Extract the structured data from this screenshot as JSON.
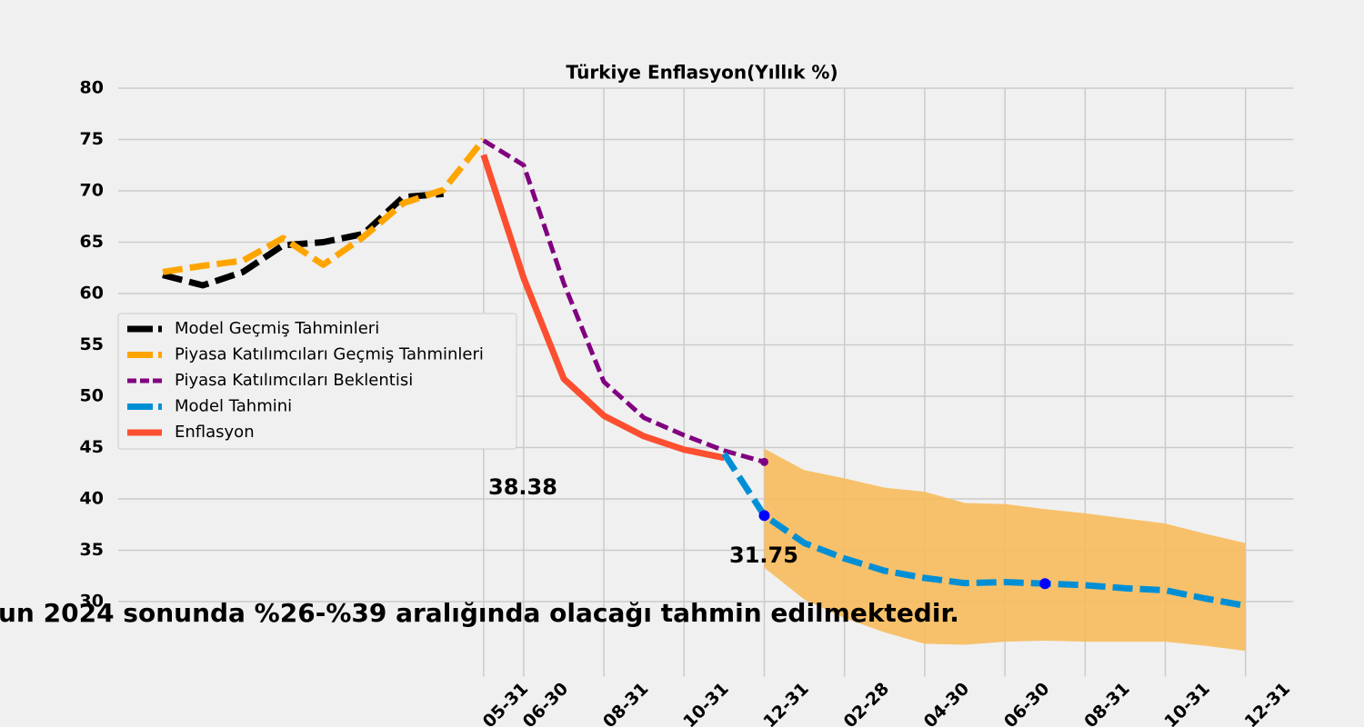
{
  "chart_data": {
    "type": "line",
    "title": "Türkiye Enflasyon(Yıllık %)",
    "note": "un 2024 sonunda %26-%39 aralığında olacağı tahmin edilmektedir.",
    "categories": [
      null,
      null,
      null,
      null,
      null,
      null,
      null,
      null,
      "05-31",
      "06-30",
      null,
      "08-31",
      null,
      "10-31",
      null,
      "12-31",
      null,
      "02-28",
      null,
      "04-30",
      null,
      "06-30",
      null,
      "08-31",
      null,
      "10-31",
      null,
      "12-31"
    ],
    "ylim": [
      22.7,
      80
    ],
    "yticks": [
      30,
      35,
      40,
      45,
      50,
      55,
      60,
      65,
      70,
      75,
      80
    ],
    "grid": true,
    "legend": "center left",
    "series": [
      {
        "name": "Model Geçmiş Tahminleri",
        "color": "#000000",
        "linestyle": "dashed",
        "values": [
          61.8,
          60.8,
          62.1,
          64.7,
          65.0,
          65.8,
          69.4,
          69.7,
          null,
          null,
          null,
          null,
          null,
          null,
          null,
          null,
          null,
          null,
          null,
          null,
          null,
          null,
          null,
          null,
          null,
          null,
          null,
          null
        ]
      },
      {
        "name": "Piyasa Katılımcıları Geçmiş Tahminleri",
        "color": "#ffa500",
        "linestyle": "dashed",
        "values": [
          62.1,
          62.7,
          63.2,
          65.4,
          62.8,
          65.5,
          68.8,
          70.1,
          75.0,
          null,
          null,
          null,
          null,
          null,
          null,
          null,
          null,
          null,
          null,
          null,
          null,
          null,
          null,
          null,
          null,
          null,
          null,
          null
        ]
      },
      {
        "name": "Piyasa Katılımcıları Beklentisi",
        "color": "#800080",
        "linestyle": "dashed",
        "markers": [
          15
        ],
        "values": [
          null,
          null,
          null,
          null,
          null,
          null,
          null,
          null,
          74.9,
          72.5,
          61.0,
          51.4,
          47.9,
          46.2,
          44.7,
          43.6,
          null,
          null,
          null,
          null,
          null,
          null,
          null,
          null,
          null,
          null,
          null,
          null
        ]
      },
      {
        "name": "Model Tahmini",
        "color": "#008fd5",
        "linestyle": "dashed",
        "markers": [
          15,
          22
        ],
        "values": [
          null,
          null,
          null,
          null,
          null,
          null,
          null,
          null,
          null,
          null,
          null,
          null,
          null,
          null,
          44.4,
          38.38,
          35.7,
          34.2,
          33.0,
          32.3,
          31.8,
          31.9,
          31.75,
          31.6,
          31.3,
          31.1,
          30.3,
          29.6
        ]
      },
      {
        "name": "Enflasyon",
        "color": "#fc4f30",
        "linestyle": "solid",
        "values": [
          null,
          null,
          null,
          null,
          null,
          null,
          null,
          null,
          73.5,
          61.5,
          51.7,
          48.1,
          46.1,
          44.8,
          44.0,
          null,
          null,
          null,
          null,
          null,
          null,
          null,
          null,
          null,
          null,
          null,
          null,
          null
        ]
      }
    ],
    "band": {
      "color": "#f7bb5c",
      "upper": [
        null,
        null,
        null,
        null,
        null,
        null,
        null,
        null,
        null,
        null,
        null,
        null,
        null,
        null,
        null,
        44.9,
        42.8,
        42.0,
        41.1,
        40.7,
        39.6,
        39.5,
        39.0,
        38.6,
        38.1,
        37.6,
        36.6,
        35.7
      ],
      "lower": [
        null,
        null,
        null,
        null,
        null,
        null,
        null,
        null,
        null,
        null,
        null,
        null,
        null,
        null,
        null,
        33.3,
        30.2,
        28.4,
        27.0,
        25.9,
        25.8,
        26.1,
        26.2,
        26.1,
        26.1,
        26.1,
        25.7,
        25.2
      ]
    },
    "annotations": [
      "38.38",
      "31.75"
    ]
  }
}
